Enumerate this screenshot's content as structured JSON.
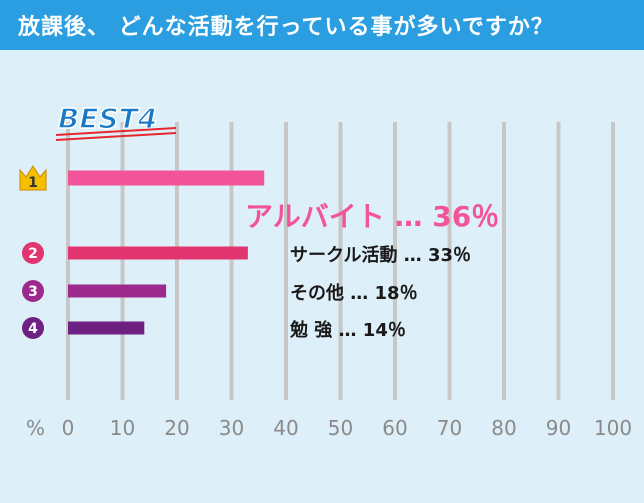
{
  "header": {
    "title": "放課後、 どんな活動を行っている事が多いですか？"
  },
  "colors": {
    "background": "#ddeff8",
    "header": "#2a9ee0",
    "grid": "#c7c7c7",
    "rank1": "#f2549a",
    "rank2": "#e0356f",
    "rank3": "#9c2a8c",
    "rank4": "#6f2183",
    "crown": "#f6c000"
  },
  "chart_data": {
    "type": "bar",
    "orientation": "horizontal",
    "badge": "BEST4",
    "categories": [
      "アルバイト",
      "サークル活動",
      "その他",
      "勉強"
    ],
    "values": [
      36,
      33,
      18,
      14
    ],
    "ranks": [
      "1",
      "2",
      "3",
      "4"
    ],
    "labels": [
      "アルバイト …  36％",
      "サークル活動 …  33％",
      "その他 …  18％",
      "勉 強 …  14％"
    ],
    "unit": "%",
    "xlim": [
      0,
      100
    ],
    "xticks": [
      "0",
      "10",
      "20",
      "30",
      "40",
      "50",
      "60",
      "70",
      "80",
      "90",
      "100"
    ],
    "grid": true
  }
}
